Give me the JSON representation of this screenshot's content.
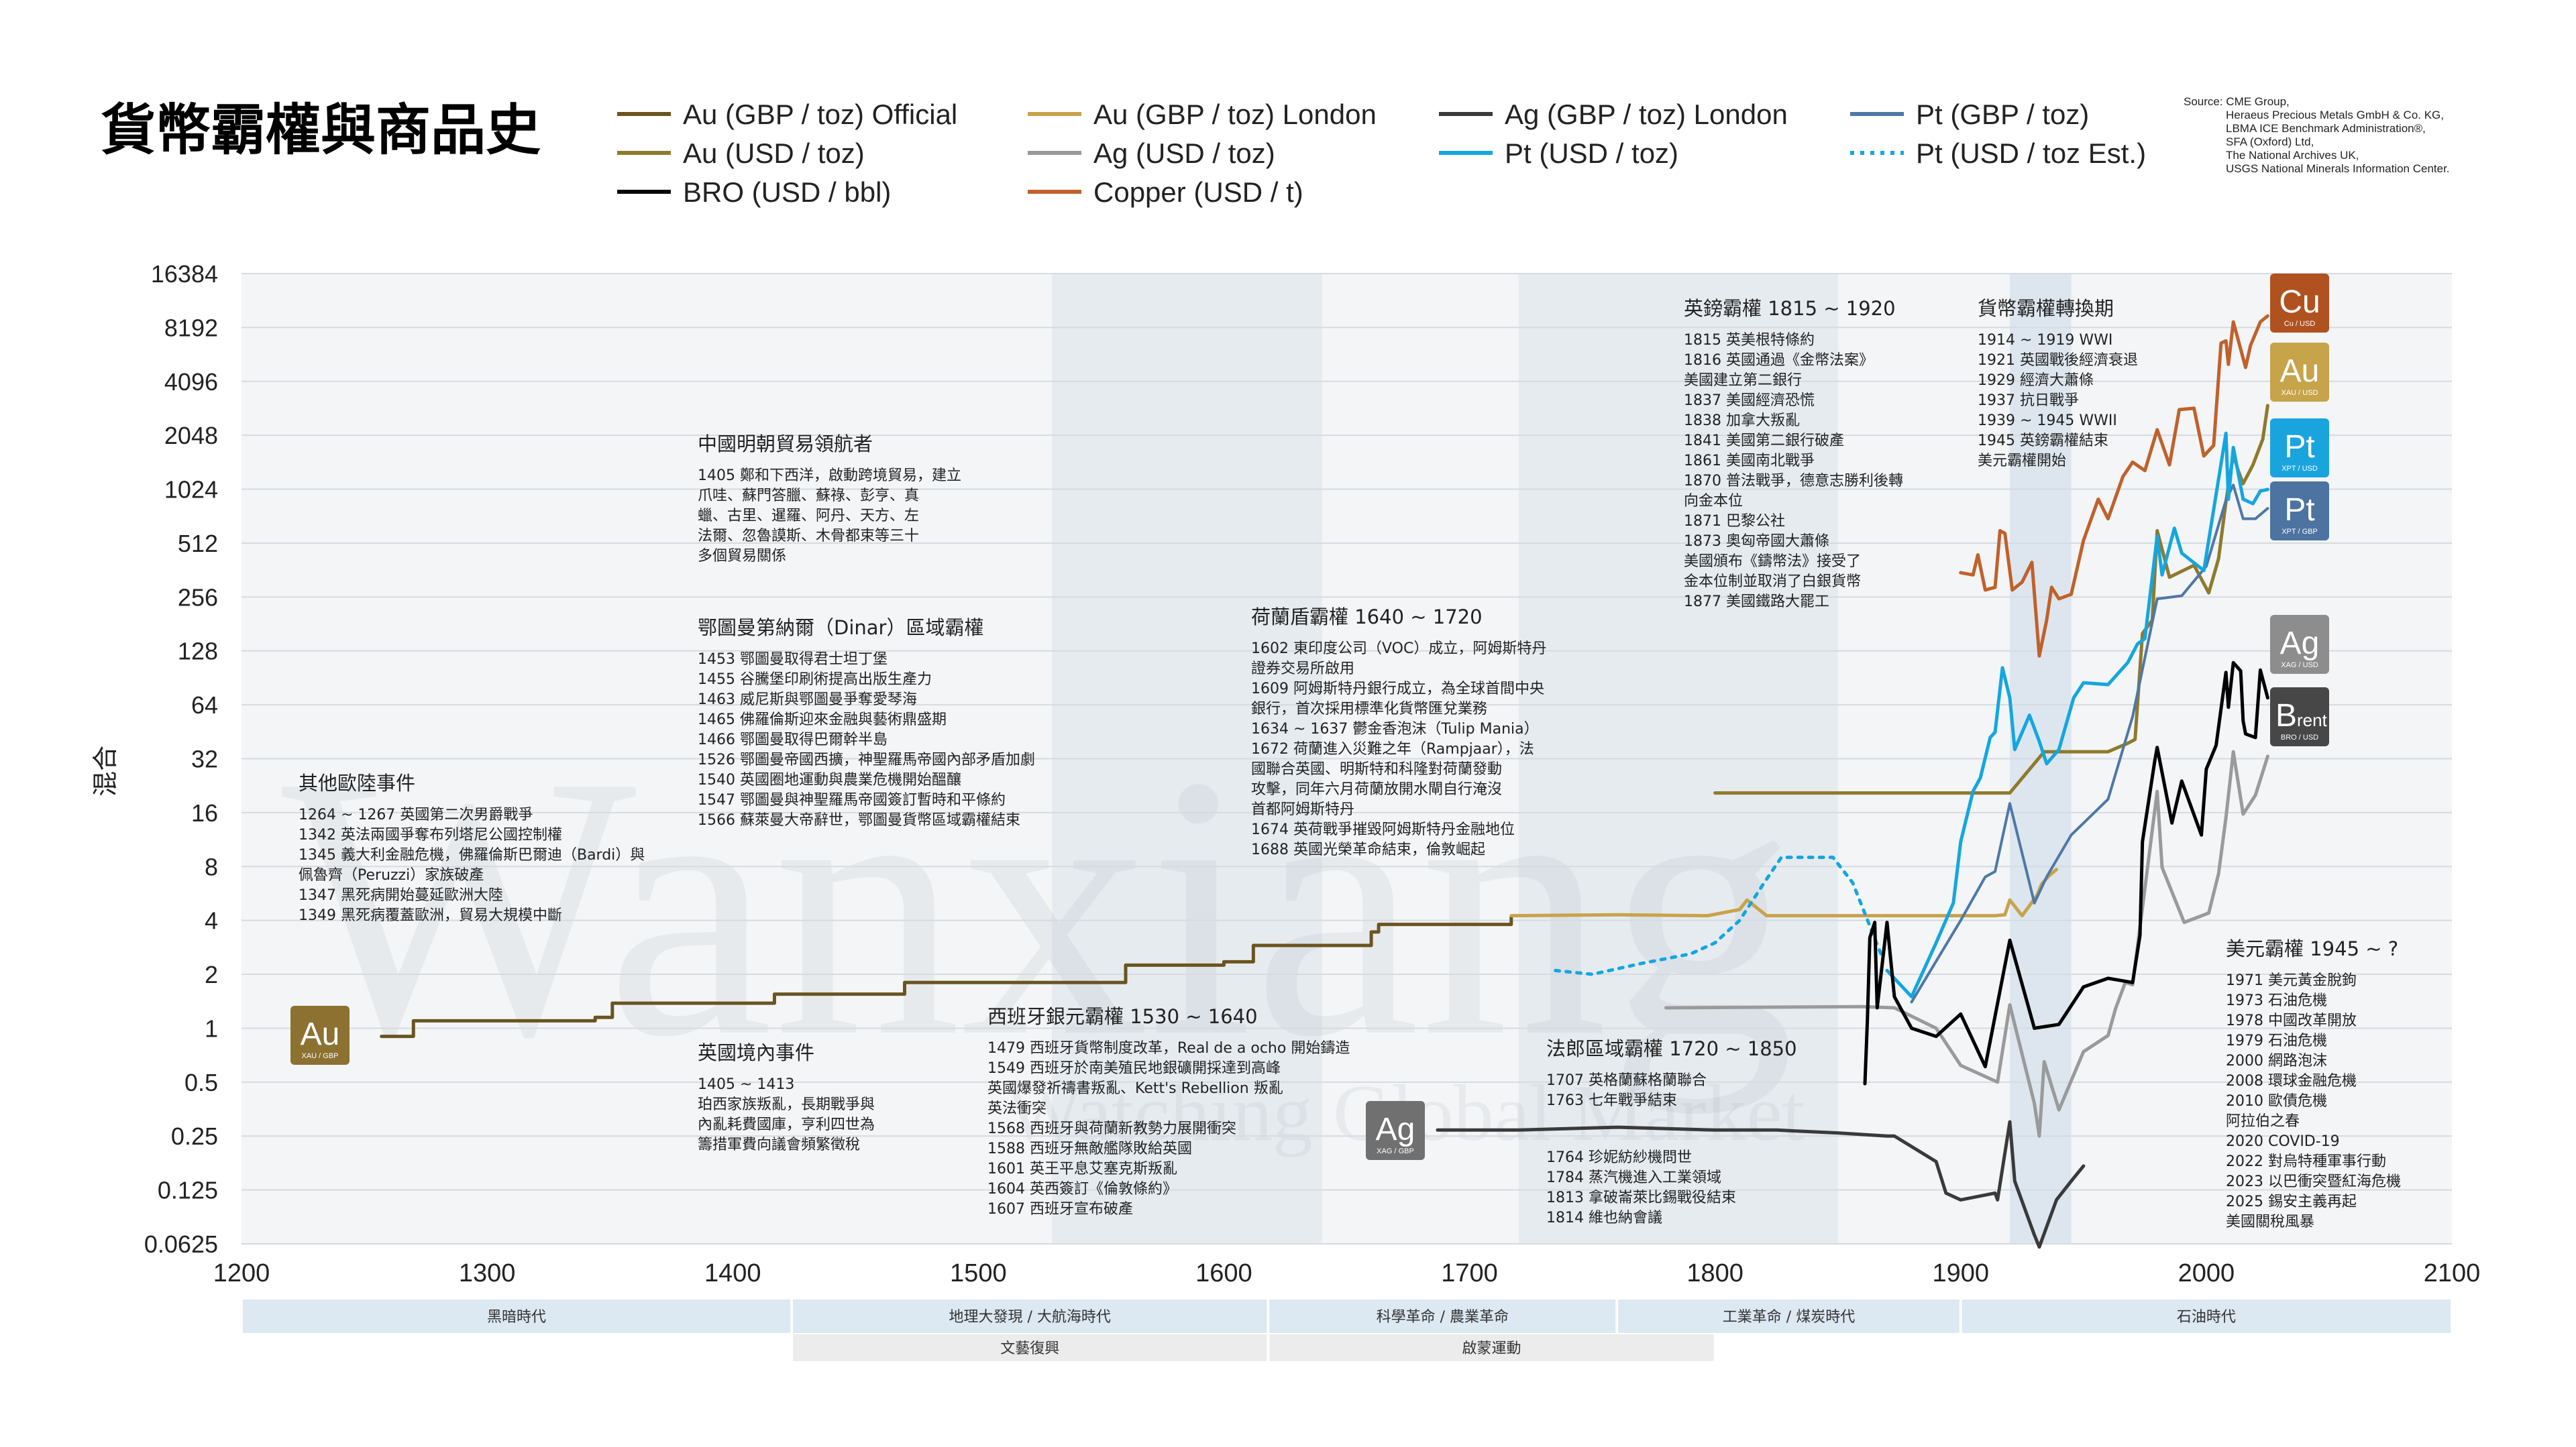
{
  "title": "貨幣霸權與商品史",
  "source": [
    "Source: CME Group,",
    "Heraeus Precious Metals GmbH & Co. KG,",
    "LBMA ICE Benchmark Administration®,",
    "SFA (Oxford) Ltd,",
    "The National Archives UK,",
    "USGS National Minerals Information Center."
  ],
  "watermark": [
    "Wanxiang",
    "Watching Global Market"
  ],
  "colors": {
    "au_official": "#6b5420",
    "au_london": "#c9a24a",
    "au_usd": "#8f7a2c",
    "ag_london": "#3a3a3a",
    "ag_usd": "#9a9a9a",
    "pt_gbp": "#4d78a8",
    "pt_usd": "#14a6df",
    "bro": "#000000",
    "copper": "#c0612a",
    "band": "#dce8f2",
    "plot_bg": "#f3f5f7"
  },
  "chart_data": {
    "type": "line",
    "ylabel": "混合",
    "yscale": "log2",
    "ylim": [
      0.0625,
      16384
    ],
    "xlim": [
      1200,
      2100
    ],
    "yticks": [
      "16384",
      "8192",
      "4096",
      "2048",
      "1024",
      "512",
      "256",
      "128",
      "64",
      "32",
      "16",
      "8",
      "4",
      "2",
      "1",
      "0.5",
      "0.25",
      "0.125",
      "0.0625"
    ],
    "xticks": [
      "1200",
      "1300",
      "1400",
      "1500",
      "1600",
      "1700",
      "1800",
      "1900",
      "2000",
      "2100"
    ],
    "legend": [
      {
        "label": "Au (GBP / toz) Official",
        "color": "#6b5420",
        "dash": false
      },
      {
        "label": "Au (GBP / toz) London",
        "color": "#c9a24a",
        "dash": false
      },
      {
        "label": "Ag (GBP / toz) London",
        "color": "#3a3a3a",
        "dash": false
      },
      {
        "label": "Pt (GBP / toz)",
        "color": "#4d78a8",
        "dash": false
      },
      {
        "label": "Au (USD / toz)",
        "color": "#8f7a2c",
        "dash": false
      },
      {
        "label": "Ag (USD / toz)",
        "color": "#9a9a9a",
        "dash": false
      },
      {
        "label": "Pt (USD / toz)",
        "color": "#14a6df",
        "dash": false
      },
      {
        "label": "Pt (USD / toz Est.)",
        "color": "#14a6df",
        "dash": true
      },
      {
        "label": "BRO (USD / bbl)",
        "color": "#000000",
        "dash": false
      },
      {
        "label": "Copper (USD / t)",
        "color": "#c0612a",
        "dash": false
      }
    ],
    "series": [
      {
        "key": "au_official",
        "color": "#6b5420",
        "width": 5,
        "step": true,
        "x": [
          1257,
          1270,
          1344,
          1351,
          1412,
          1417,
          1464,
          1470,
          1526,
          1560,
          1600,
          1612,
          1619,
          1660,
          1663,
          1700,
          1717
        ],
        "y": [
          0.9,
          1.1,
          1.15,
          1.38,
          1.38,
          1.55,
          1.55,
          1.8,
          1.8,
          2.25,
          2.35,
          2.9,
          2.9,
          3.45,
          3.8,
          3.8,
          4.2
        ]
      },
      {
        "key": "au_london",
        "color": "#c9a24a",
        "width": 5,
        "x": [
          1717,
          1760,
          1797,
          1810,
          1813,
          1821,
          1830,
          1890,
          1914,
          1918,
          1920,
          1925,
          1931,
          1933,
          1936,
          1939
        ],
        "y": [
          4.25,
          4.3,
          4.25,
          4.6,
          5.2,
          4.25,
          4.25,
          4.25,
          4.25,
          4.3,
          5.2,
          4.25,
          5.5,
          6.4,
          7.1,
          7.7
        ]
      },
      {
        "key": "au_usd",
        "color": "#8f7a2c",
        "width": 5,
        "x": [
          1800,
          1860,
          1920,
          1934,
          1960,
          1968,
          1971,
          1974,
          1978,
          1980,
          1985,
          1995,
          2001,
          2005,
          2008,
          2011,
          2013,
          2015,
          2019,
          2023,
          2025
        ],
        "y": [
          20.6,
          20.6,
          20.6,
          35,
          35,
          39,
          41,
          160,
          190,
          600,
          330,
          385,
          270,
          420,
          870,
          1600,
          1300,
          1100,
          1400,
          1950,
          3000
        ]
      },
      {
        "key": "ag_london",
        "color": "#3a3a3a",
        "width": 5,
        "x": [
          1687,
          1700,
          1720,
          1760,
          1800,
          1825,
          1850,
          1870,
          1873,
          1890,
          1894,
          1900,
          1914,
          1915,
          1920,
          1922,
          1930,
          1932,
          1939,
          1945,
          1950
        ],
        "y": [
          0.27,
          0.27,
          0.27,
          0.28,
          0.27,
          0.27,
          0.26,
          0.25,
          0.25,
          0.18,
          0.12,
          0.11,
          0.12,
          0.11,
          0.3,
          0.14,
          0.07,
          0.06,
          0.11,
          0.14,
          0.17
        ]
      },
      {
        "key": "ag_usd",
        "color": "#9a9a9a",
        "width": 5,
        "x": [
          1780,
          1860,
          1873,
          1890,
          1900,
          1915,
          1920,
          1930,
          1932,
          1934,
          1940,
          1950,
          1960,
          1963,
          1967,
          1970,
          1974,
          1980,
          1982,
          1991,
          2001,
          2005,
          2008,
          2011,
          2015,
          2020,
          2025
        ],
        "y": [
          1.3,
          1.32,
          1.3,
          1.0,
          0.62,
          0.5,
          1.35,
          0.38,
          0.25,
          0.65,
          0.35,
          0.74,
          0.91,
          1.28,
          1.8,
          1.75,
          4.7,
          21,
          7.9,
          3.9,
          4.4,
          7.3,
          15,
          35,
          15.7,
          20,
          33
        ]
      },
      {
        "key": "pt_gbp",
        "color": "#4d78a8",
        "width": 4,
        "x": [
          1880,
          1900,
          1910,
          1914,
          1920,
          1930,
          1935,
          1945,
          1960,
          1970,
          1980,
          1990,
          2000,
          2008,
          2011,
          2015,
          2020,
          2025
        ],
        "y": [
          1.4,
          4,
          7,
          7.5,
          18,
          5,
          7,
          12,
          19,
          55,
          250,
          260,
          380,
          890,
          1080,
          700,
          700,
          800
        ]
      },
      {
        "key": "pt_usd",
        "color": "#14a6df",
        "width": 5,
        "x": [
          1870,
          1880,
          1890,
          1897,
          1900,
          1905,
          1908,
          1912,
          1914,
          1917,
          1920,
          1922,
          1928,
          1932,
          1935,
          1940,
          1946,
          1950,
          1960,
          1968,
          1972,
          1975,
          1980,
          1982,
          1987,
          1990,
          1999,
          2008,
          2009,
          2011,
          2015,
          2019,
          2022,
          2025
        ],
        "y": [
          2.1,
          1.5,
          3,
          5,
          11,
          21,
          25,
          42,
          45,
          103,
          70,
          36,
          56,
          40,
          30,
          36,
          70,
          85,
          83,
          110,
          140,
          150,
          560,
          340,
          620,
          450,
          360,
          2100,
          900,
          1750,
          900,
          850,
          1000,
          1020
        ]
      },
      {
        "key": "pt_est",
        "color": "#14a6df",
        "width": 5,
        "dash": true,
        "x": [
          1735,
          1750,
          1770,
          1790,
          1800,
          1810,
          1820,
          1827,
          1848,
          1856,
          1868
        ],
        "y": [
          2.1,
          2.0,
          2.3,
          2.6,
          3.0,
          4.0,
          6.5,
          9.0,
          9.0,
          6.5,
          2.5
        ]
      },
      {
        "key": "bro",
        "color": "#000000",
        "width": 5,
        "x": [
          1861,
          1862,
          1863,
          1865,
          1866,
          1870,
          1873,
          1880,
          1890,
          1900,
          1910,
          1920,
          1930,
          1940,
          1950,
          1960,
          1970,
          1973,
          1974,
          1979,
          1980,
          1986,
          1990,
          1998,
          2000,
          2004,
          2008,
          2009,
          2011,
          2014,
          2015,
          2016,
          2020,
          2022,
          2025
        ],
        "y": [
          0.49,
          1.1,
          3.2,
          3.9,
          1.3,
          3.9,
          1.5,
          1.0,
          0.9,
          1.2,
          0.61,
          3.1,
          1.0,
          1.05,
          1.7,
          1.9,
          1.8,
          3.3,
          11,
          31,
          37,
          14,
          24,
          12,
          28,
          38,
          97,
          62,
          110,
          99,
          52,
          44,
          42,
          100,
          70
        ]
      },
      {
        "key": "copper",
        "color": "#c0612a",
        "width": 5,
        "x": [
          1900,
          1905,
          1907,
          1910,
          1914,
          1916,
          1918,
          1921,
          1925,
          1929,
          1932,
          1935,
          1937,
          1940,
          1945,
          1950,
          1956,
          1960,
          1966,
          1970,
          1975,
          1980,
          1985,
          1989,
          1995,
          1999,
          2003,
          2006,
          2008,
          2009,
          2011,
          2016,
          2018,
          2022,
          2025
        ],
        "y": [
          350,
          340,
          440,
          280,
          290,
          600,
          580,
          280,
          310,
          400,
          120,
          190,
          290,
          250,
          265,
          530,
          900,
          700,
          1200,
          1450,
          1300,
          2200,
          1400,
          2850,
          2900,
          1570,
          1800,
          6700,
          6900,
          5100,
          8800,
          4900,
          6500,
          8800,
          9500
        ]
      }
    ]
  },
  "bands": [
    {
      "label": "黑暗時代",
      "from": 1200,
      "to": 1424,
      "row": 1
    },
    {
      "label": "地理大發現 / 大航海時代",
      "from": 1424,
      "to": 1618,
      "row": 1
    },
    {
      "label": "科學革命 / 農業革命",
      "from": 1618,
      "to": 1760,
      "row": 1
    },
    {
      "label": "工業革命 / 煤炭時代",
      "from": 1760,
      "to": 1900,
      "row": 1
    },
    {
      "label": "石油時代",
      "from": 1900,
      "to": 2100,
      "row": 1
    },
    {
      "label": "文藝復興",
      "from": 1424,
      "to": 1618,
      "row": 2
    },
    {
      "label": "啟蒙運動",
      "from": 1618,
      "to": 1800,
      "row": 2
    }
  ],
  "badges": [
    {
      "sym": "Au",
      "sub": "XAU / GBP",
      "color": "#8c7131"
    },
    {
      "sym": "Ag",
      "sub": "XAG / GBP",
      "color": "#707070"
    },
    {
      "sym": "Cu",
      "sub": "Cu / USD",
      "color": "#b0521f"
    },
    {
      "sym": "Au",
      "sub": "XAU / USD",
      "color": "#c7a34a"
    },
    {
      "sym": "Pt",
      "sub": "XPT / USD",
      "color": "#1aa4de"
    },
    {
      "sym": "Pt",
      "sub": "XPT / GBP",
      "color": "#4d73a0"
    },
    {
      "sym": "Ag",
      "sub": "XAG / USD",
      "color": "#8d8d8d"
    },
    {
      "sym": "Brent",
      "sub": "BRO / USD",
      "color": "#474747"
    }
  ],
  "annotations": [
    {
      "head": "其他歐陸事件",
      "lines": [
        "1264 ~ 1267 英國第二次男爵戰爭",
        "1342 英法兩國爭奪布列塔尼公國控制權",
        "1345 義大利金融危機，佛羅倫斯巴爾迪（Bardi）與",
        "       佩魯齊（Peruzzi）家族破產",
        "1347 黑死病開始蔓延歐洲大陸",
        "1349 黑死病覆蓋歐洲，貿易大規模中斷"
      ]
    },
    {
      "head": "中國明朝貿易領航者",
      "lines": [
        "1405 鄭和下西洋，啟動跨境貿易，建立",
        "       爪哇、蘇門答臘、蘇祿、彭亨、真",
        "       蠟、古里、暹羅、阿丹、天方、左",
        "       法爾、忽魯謨斯、木骨都束等三十",
        "       多個貿易關係"
      ]
    },
    {
      "head": "鄂圖曼第納爾（Dinar）區域霸權",
      "lines": [
        "1453 鄂圖曼取得君士坦丁堡",
        "1455 谷騰堡印刷術提高出版生產力",
        "1463 威尼斯與鄂圖曼爭奪愛琴海",
        "1465 佛羅倫斯迎來金融與藝術鼎盛期",
        "1466 鄂圖曼取得巴爾幹半島",
        "1526 鄂圖曼帝國西擴，神聖羅馬帝國內部矛盾加劇",
        "1540 英國圈地運動與農業危機開始醞釀",
        "1547 鄂圖曼與神聖羅馬帝國簽訂暫時和平條約",
        "1566 蘇萊曼大帝辭世，鄂圖曼貨幣區域霸權結束"
      ]
    },
    {
      "head": "英國境內事件",
      "lines": [
        "1405 ~ 1413",
        "珀西家族叛亂，長期戰爭與",
        "內亂耗費國庫，亨利四世為",
        "籌措軍費向議會頻繁徵稅"
      ]
    },
    {
      "head": "西班牙銀元霸權 1530 ~ 1640",
      "lines": [
        "1479 西班牙貨幣制度改革，Real de a ocho 開始鑄造",
        "1549 西班牙於南美殖民地銀礦開採達到高峰",
        "       英國爆發祈禱書叛亂、Kett's Rebellion 叛亂",
        "       英法衝突",
        "1568 西班牙與荷蘭新教勢力展開衝突",
        "1588 西班牙無敵艦隊敗給英國",
        "1601 英王平息艾塞克斯叛亂",
        "1604 英西簽訂《倫敦條約》",
        "1607 西班牙宣布破產"
      ]
    },
    {
      "head": "荷蘭盾霸權 1640 ~ 1720",
      "lines": [
        "1602 東印度公司（VOC）成立，阿姆斯特丹",
        "       證券交易所啟用",
        "1609 阿姆斯特丹銀行成立，為全球首間中央",
        "       銀行，首次採用標準化貨幣匯兌業務",
        "1634 ~ 1637 鬱金香泡沫（Tulip Mania）",
        "1672 荷蘭進入災難之年（Rampjaar），法",
        "       國聯合英國、明斯特和科隆對荷蘭發動",
        "       攻擊，同年六月荷蘭放開水閘自行淹沒",
        "       首都阿姆斯特丹",
        "1674 英荷戰爭摧毀阿姆斯特丹金融地位",
        "1688 英國光榮革命結束，倫敦崛起"
      ]
    },
    {
      "head": "法郎區域霸權 1720 ~ 1850",
      "lines": [
        "1707 英格蘭蘇格蘭聯合",
        "1763 七年戰爭結束"
      ]
    },
    {
      "head": "",
      "lines": [
        "1764 珍妮紡紗機問世",
        "1784 蒸汽機進入工業領域",
        "1813 拿破崙萊比錫戰役結束",
        "1814 維也納會議"
      ]
    },
    {
      "head": "英鎊霸權 1815 ~ 1920",
      "lines": [
        "1815 英美根特條約",
        "1816 英國通過《金幣法案》",
        "       美國建立第二銀行",
        "1837 美國經濟恐慌",
        "1838 加拿大叛亂",
        "1841 美國第二銀行破產",
        "1861 美國南北戰爭",
        "1870 普法戰爭，德意志勝利後轉",
        "       向金本位",
        "1871 巴黎公社",
        "1873 奧匈帝國大蕭條",
        "       美國頒布《鑄幣法》接受了",
        "       金本位制並取消了白銀貨幣",
        "1877 美國鐵路大罷工"
      ]
    },
    {
      "head": "貨幣霸權轉換期",
      "lines": [
        "1914 ~ 1919 WWI",
        "1921 英國戰後經濟衰退",
        "1929 經濟大蕭條",
        "1937 抗日戰爭",
        "1939 ~ 1945 WWII",
        "1945 英鎊霸權結束",
        "       美元霸權開始"
      ]
    },
    {
      "head": "美元霸權 1945 ~ ?",
      "lines": [
        "1971 美元黃金脫鉤",
        "1973 石油危機",
        "1978 中國改革開放",
        "1979 石油危機",
        "2000 網路泡沫",
        "2008 環球金融危機",
        "2010 歐債危機",
        "       阿拉伯之春",
        "2020 COVID-19",
        "2022 對烏特種軍事行動",
        "2023 以巴衝突暨紅海危機",
        "2025 錫安主義再起",
        "       美國關稅風暴"
      ]
    }
  ]
}
